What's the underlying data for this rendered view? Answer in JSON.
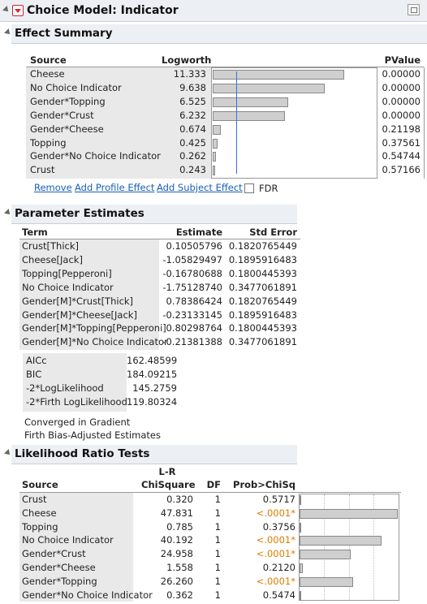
{
  "title": "Choice Model: Indicator",
  "effect_summary": {
    "title": "Effect Summary",
    "columns": {
      "source": "Source",
      "logworth": "Logworth",
      "pvalue": "PValue"
    },
    "rows": [
      {
        "source": "Cheese",
        "logworth": "11.333",
        "logworth_value": 11.333,
        "pvalue": "0.00000"
      },
      {
        "source": "No Choice Indicator",
        "logworth": "9.638",
        "logworth_value": 9.638,
        "pvalue": "0.00000"
      },
      {
        "source": "Gender*Topping",
        "logworth": "6.525",
        "logworth_value": 6.525,
        "pvalue": "0.00000"
      },
      {
        "source": "Gender*Crust",
        "logworth": "6.232",
        "logworth_value": 6.232,
        "pvalue": "0.00000"
      },
      {
        "source": "Gender*Cheese",
        "logworth": "0.674",
        "logworth_value": 0.674,
        "pvalue": "0.21198"
      },
      {
        "source": "Topping",
        "logworth": "0.425",
        "logworth_value": 0.425,
        "pvalue": "0.37561"
      },
      {
        "source": "Gender*No Choice Indicator",
        "logworth": "0.262",
        "logworth_value": 0.262,
        "pvalue": "0.54744"
      },
      {
        "source": "Crust",
        "logworth": "0.243",
        "logworth_value": 0.243,
        "pvalue": "0.57166"
      }
    ],
    "buttons": {
      "remove": "Remove",
      "add_profile": "Add Profile Effect",
      "add_subject": "Add Subject Effect",
      "fdr": "FDR"
    }
  },
  "parameter_estimates": {
    "title": "Parameter Estimates",
    "columns": {
      "term": "Term",
      "estimate": "Estimate",
      "std_error": "Std Error"
    },
    "rows": [
      {
        "term": "Crust[Thick]",
        "estimate": "0.10505796",
        "std_error": "0.1820765449"
      },
      {
        "term": "Cheese[Jack]",
        "estimate": "-1.05829497",
        "std_error": "0.1895916483"
      },
      {
        "term": "Topping[Pepperoni]",
        "estimate": "-0.16780688",
        "std_error": "0.1800445393"
      },
      {
        "term": "No Choice Indicator",
        "estimate": "-1.75128740",
        "std_error": "0.3477061891"
      },
      {
        "term": "Gender[M]*Crust[Thick]",
        "estimate": "0.78386424",
        "std_error": "0.1820765449"
      },
      {
        "term": "Gender[M]*Cheese[Jack]",
        "estimate": "-0.23133145",
        "std_error": "0.1895916483"
      },
      {
        "term": "Gender[M]*Topping[Pepperoni]",
        "estimate": "0.80298764",
        "std_error": "0.1800445393"
      },
      {
        "term": "Gender[M]*No Choice Indicator",
        "estimate": "-0.21381388",
        "std_error": "0.3477061891"
      }
    ],
    "fit_stats": [
      {
        "label": "AICc",
        "value": "162.48599"
      },
      {
        "label": "BIC",
        "value": "184.09215"
      },
      {
        "label": "-2*LogLikelihood",
        "value": "145.2759"
      },
      {
        "label": "-2*Firth LogLikelihood",
        "value": "119.80324"
      }
    ],
    "notes": [
      "Converged in Gradient",
      "Firth Bias-Adjusted Estimates"
    ]
  },
  "likelihood_ratio_tests": {
    "title": "Likelihood Ratio Tests",
    "columns": {
      "source": "Source",
      "lr_line1": "L-R",
      "lr_line2": "ChiSquare",
      "df": "DF",
      "prob": "Prob>ChiSq"
    },
    "rows": [
      {
        "source": "Crust",
        "chisq": "0.320",
        "chisq_value": 0.32,
        "df": "1",
        "prob": "0.5717",
        "sig": false
      },
      {
        "source": "Cheese",
        "chisq": "47.831",
        "chisq_value": 47.831,
        "df": "1",
        "prob": "<.0001*",
        "sig": true
      },
      {
        "source": "Topping",
        "chisq": "0.785",
        "chisq_value": 0.785,
        "df": "1",
        "prob": "0.3756",
        "sig": false
      },
      {
        "source": "No Choice Indicator",
        "chisq": "40.192",
        "chisq_value": 40.192,
        "df": "1",
        "prob": "<.0001*",
        "sig": true
      },
      {
        "source": "Gender*Crust",
        "chisq": "24.958",
        "chisq_value": 24.958,
        "df": "1",
        "prob": "<.0001*",
        "sig": true
      },
      {
        "source": "Gender*Cheese",
        "chisq": "1.558",
        "chisq_value": 1.558,
        "df": "1",
        "prob": "0.2120",
        "sig": false
      },
      {
        "source": "Gender*Topping",
        "chisq": "26.260",
        "chisq_value": 26.26,
        "df": "1",
        "prob": "<.0001*",
        "sig": true
      },
      {
        "source": "Gender*No Choice Indicator",
        "chisq": "0.362",
        "chisq_value": 0.362,
        "df": "1",
        "prob": "0.5474",
        "sig": false
      }
    ]
  },
  "colors": {
    "significant": "#e07b00",
    "link": "#1a5fb4",
    "red_menu": "#d9262e",
    "bar_fill": "#cfcfcf",
    "ref_line": "#3a6fd8"
  }
}
